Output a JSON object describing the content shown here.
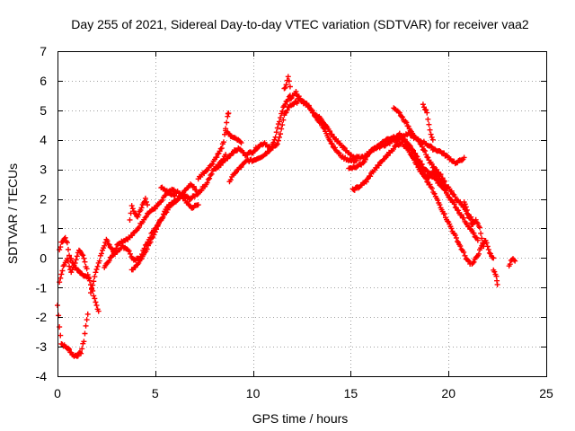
{
  "chart_data": {
    "type": "scatter",
    "title": "Day 255 of 2021, Sidereal Day-to-day VTEC variation (SDTVAR) for receiver vaa2",
    "xlabel": "GPS time / hours",
    "ylabel": "SDTVAR / TECUs",
    "xlim": [
      0,
      25
    ],
    "ylim": [
      -4,
      7
    ],
    "xticks": [
      0,
      5,
      10,
      15,
      20,
      25
    ],
    "yticks": [
      -4,
      -3,
      -2,
      -1,
      0,
      1,
      2,
      3,
      4,
      5,
      6,
      7
    ],
    "grid": true,
    "marker": "+",
    "series": [
      {
        "name": "SDTVAR",
        "color": "#ff0000",
        "tracks": [
          [
            [
              0,
              -1.6
            ],
            [
              0.1,
              -2.3
            ],
            [
              0.2,
              -2.9
            ],
            [
              0.4,
              -3.0
            ],
            [
              0.6,
              -3.1
            ],
            [
              0.8,
              -3.3
            ],
            [
              1.0,
              -3.3
            ],
            [
              1.2,
              -3.2
            ],
            [
              1.35,
              -2.8
            ],
            [
              1.45,
              -2.3
            ],
            [
              1.55,
              -1.9
            ]
          ],
          [
            [
              0.1,
              0.3
            ],
            [
              0.2,
              0.5
            ],
            [
              0.4,
              0.7
            ],
            [
              0.5,
              0.5
            ],
            [
              0.6,
              0.1
            ],
            [
              0.8,
              -0.2
            ],
            [
              1.0,
              -0.4
            ],
            [
              1.2,
              -0.5
            ],
            [
              1.4,
              -0.6
            ],
            [
              1.6,
              -0.7
            ]
          ],
          [
            [
              0.1,
              -0.8
            ],
            [
              0.3,
              -0.3
            ],
            [
              0.5,
              0.0
            ],
            [
              0.7,
              -0.5
            ],
            [
              0.9,
              -0.2
            ],
            [
              1.1,
              0.3
            ],
            [
              1.3,
              0.1
            ],
            [
              1.5,
              -0.4
            ],
            [
              1.7,
              -0.9
            ],
            [
              1.9,
              -1.4
            ],
            [
              2.1,
              -1.8
            ]
          ],
          [
            [
              1.7,
              -1.2
            ],
            [
              1.9,
              -0.6
            ],
            [
              2.1,
              -0.2
            ],
            [
              2.3,
              0.3
            ],
            [
              2.5,
              0.6
            ],
            [
              2.7,
              0.4
            ],
            [
              2.9,
              0.2
            ],
            [
              3.1,
              0.5
            ],
            [
              3.4,
              0.6
            ],
            [
              3.7,
              0.7
            ],
            [
              4.0,
              0.9
            ],
            [
              4.3,
              1.2
            ],
            [
              4.6,
              1.5
            ],
            [
              5.0,
              1.7
            ],
            [
              5.3,
              1.9
            ],
            [
              5.6,
              2.2
            ],
            [
              5.9,
              2.3
            ],
            [
              6.2,
              2.2
            ],
            [
              6.5,
              2.1
            ],
            [
              6.8,
              2.0
            ],
            [
              7.2,
              2.2
            ],
            [
              7.6,
              2.5
            ],
            [
              8.0,
              3.0
            ],
            [
              8.3,
              3.2
            ],
            [
              8.6,
              3.5
            ]
          ],
          [
            [
              2.4,
              -0.3
            ],
            [
              2.7,
              0.0
            ],
            [
              3.0,
              0.2
            ],
            [
              3.3,
              0.4
            ],
            [
              3.6,
              0.3
            ],
            [
              3.9,
              -0.1
            ],
            [
              4.2,
              0.0
            ],
            [
              4.5,
              0.4
            ],
            [
              4.8,
              0.8
            ],
            [
              5.1,
              1.1
            ],
            [
              5.4,
              1.4
            ],
            [
              5.7,
              1.7
            ],
            [
              6.0,
              1.9
            ],
            [
              6.3,
              2.1
            ],
            [
              6.6,
              1.9
            ],
            [
              6.9,
              1.7
            ],
            [
              7.2,
              1.8
            ]
          ],
          [
            [
              3.8,
              -0.4
            ],
            [
              4.1,
              -0.2
            ],
            [
              4.4,
              0.1
            ],
            [
              4.7,
              0.5
            ],
            [
              5.0,
              0.9
            ],
            [
              5.3,
              1.3
            ],
            [
              5.6,
              1.7
            ],
            [
              5.9,
              1.9
            ],
            [
              6.2,
              2.0
            ],
            [
              6.5,
              2.3
            ],
            [
              6.8,
              2.5
            ],
            [
              7.1,
              2.3
            ]
          ],
          [
            [
              3.7,
              1.3
            ],
            [
              3.8,
              1.8
            ],
            [
              3.9,
              1.6
            ],
            [
              4.1,
              1.4
            ],
            [
              4.3,
              1.7
            ],
            [
              4.5,
              2.0
            ],
            [
              4.6,
              1.8
            ]
          ],
          [
            [
              5.3,
              2.4
            ],
            [
              5.5,
              2.3
            ],
            [
              5.7,
              2.2
            ],
            [
              6.0,
              2.1
            ]
          ],
          [
            [
              7.2,
              2.7
            ],
            [
              7.5,
              2.9
            ],
            [
              7.8,
              3.1
            ],
            [
              8.1,
              3.4
            ],
            [
              8.3,
              3.6
            ],
            [
              8.5,
              3.9
            ],
            [
              8.6,
              4.4
            ],
            [
              8.7,
              4.8
            ],
            [
              8.75,
              4.9
            ]
          ],
          [
            [
              8.1,
              3.0
            ],
            [
              8.4,
              3.2
            ],
            [
              8.7,
              3.4
            ],
            [
              9.0,
              3.6
            ],
            [
              9.3,
              3.7
            ],
            [
              9.6,
              3.5
            ],
            [
              10.0,
              3.6
            ],
            [
              10.3,
              3.8
            ],
            [
              10.6,
              3.9
            ],
            [
              10.9,
              3.7
            ],
            [
              11.2,
              3.8
            ],
            [
              11.4,
              4.2
            ],
            [
              11.6,
              4.8
            ],
            [
              11.8,
              5.1
            ],
            [
              12.0,
              5.2
            ],
            [
              12.3,
              5.3
            ]
          ],
          [
            [
              8.8,
              2.6
            ],
            [
              9.1,
              2.9
            ],
            [
              9.4,
              3.1
            ],
            [
              9.7,
              3.3
            ],
            [
              10.0,
              3.3
            ],
            [
              10.3,
              3.4
            ],
            [
              10.6,
              3.5
            ],
            [
              10.9,
              3.7
            ],
            [
              11.1,
              4.0
            ],
            [
              11.3,
              4.5
            ],
            [
              11.5,
              5.0
            ],
            [
              11.7,
              5.3
            ],
            [
              11.9,
              5.5
            ]
          ],
          [
            [
              8.6,
              4.3
            ],
            [
              8.9,
              4.1
            ],
            [
              9.2,
              4.0
            ],
            [
              9.4,
              3.9
            ]
          ],
          [
            [
              11.6,
              5.7
            ],
            [
              11.8,
              6.1
            ],
            [
              11.9,
              5.8
            ]
          ],
          [
            [
              11.9,
              5.4
            ],
            [
              12.2,
              5.6
            ],
            [
              12.5,
              5.3
            ],
            [
              12.8,
              5.2
            ],
            [
              13.1,
              4.9
            ],
            [
              13.4,
              4.6
            ],
            [
              13.7,
              4.3
            ],
            [
              14.0,
              3.9
            ],
            [
              14.3,
              3.6
            ],
            [
              14.6,
              3.4
            ],
            [
              15.0,
              3.3
            ],
            [
              15.3,
              3.3
            ]
          ],
          [
            [
              12.3,
              5.4
            ],
            [
              12.7,
              5.2
            ],
            [
              13.1,
              4.9
            ],
            [
              13.5,
              4.7
            ],
            [
              13.8,
              4.4
            ],
            [
              14.1,
              4.1
            ],
            [
              14.4,
              3.9
            ],
            [
              14.8,
              3.6
            ],
            [
              15.2,
              3.4
            ],
            [
              15.6,
              3.4
            ],
            [
              16.0,
              3.6
            ],
            [
              16.4,
              3.8
            ],
            [
              16.8,
              4.0
            ],
            [
              17.2,
              4.1
            ],
            [
              17.6,
              4.1
            ],
            [
              18.0,
              4.2
            ],
            [
              18.4,
              4.0
            ],
            [
              18.8,
              3.9
            ],
            [
              19.2,
              3.7
            ],
            [
              19.6,
              3.6
            ],
            [
              20.0,
              3.4
            ],
            [
              20.4,
              3.2
            ],
            [
              20.8,
              3.4
            ]
          ],
          [
            [
              14.9,
              3.0
            ],
            [
              15.3,
              3.1
            ],
            [
              15.6,
              3.2
            ],
            [
              15.9,
              3.5
            ],
            [
              16.2,
              3.7
            ],
            [
              16.6,
              3.8
            ],
            [
              17.0,
              3.9
            ],
            [
              17.3,
              4.1
            ],
            [
              17.5,
              4.2
            ],
            [
              17.7,
              4.0
            ],
            [
              17.9,
              3.8
            ],
            [
              18.2,
              3.6
            ],
            [
              18.5,
              3.3
            ],
            [
              18.8,
              3.0
            ],
            [
              19.1,
              2.8
            ],
            [
              19.4,
              2.6
            ],
            [
              19.7,
              2.4
            ],
            [
              20.0,
              2.1
            ],
            [
              20.3,
              1.8
            ],
            [
              20.6,
              1.5
            ],
            [
              20.9,
              1.2
            ],
            [
              21.2,
              0.9
            ],
            [
              21.5,
              0.6
            ]
          ],
          [
            [
              15.1,
              2.3
            ],
            [
              15.4,
              2.4
            ],
            [
              15.8,
              2.6
            ],
            [
              16.1,
              2.9
            ],
            [
              16.5,
              3.2
            ],
            [
              16.9,
              3.5
            ],
            [
              17.3,
              3.8
            ],
            [
              17.6,
              3.9
            ],
            [
              17.9,
              3.7
            ],
            [
              18.2,
              3.4
            ],
            [
              18.5,
              3.0
            ],
            [
              18.8,
              2.7
            ],
            [
              19.1,
              2.4
            ],
            [
              19.4,
              2.0
            ],
            [
              19.7,
              1.6
            ],
            [
              20.0,
              1.2
            ],
            [
              20.3,
              0.8
            ],
            [
              20.6,
              0.4
            ],
            [
              20.9,
              0.0
            ],
            [
              21.1,
              -0.2
            ]
          ],
          [
            [
              17.3,
              3.9
            ],
            [
              17.6,
              4.1
            ],
            [
              17.9,
              3.9
            ],
            [
              18.2,
              3.6
            ],
            [
              18.4,
              3.3
            ],
            [
              18.6,
              3.0
            ],
            [
              18.8,
              2.8
            ],
            [
              19.0,
              2.7
            ],
            [
              19.2,
              2.9
            ],
            [
              19.5,
              2.7
            ],
            [
              19.8,
              2.5
            ],
            [
              20.1,
              2.3
            ],
            [
              20.4,
              2.0
            ],
            [
              20.7,
              1.8
            ],
            [
              21.0,
              1.5
            ],
            [
              21.3,
              1.2
            ]
          ],
          [
            [
              17.2,
              5.1
            ],
            [
              17.5,
              4.9
            ],
            [
              17.8,
              4.6
            ],
            [
              18.1,
              4.3
            ],
            [
              18.4,
              4.0
            ],
            [
              18.6,
              3.8
            ],
            [
              18.8,
              3.6
            ],
            [
              19.0,
              3.3
            ],
            [
              19.2,
              3.1
            ],
            [
              19.5,
              2.9
            ],
            [
              19.8,
              2.6
            ]
          ],
          [
            [
              18.7,
              5.2
            ],
            [
              18.9,
              4.9
            ],
            [
              19.0,
              4.5
            ],
            [
              19.1,
              4.2
            ],
            [
              19.2,
              4.0
            ]
          ],
          [
            [
              21.2,
              -0.2
            ],
            [
              21.5,
              0.1
            ],
            [
              21.7,
              0.4
            ],
            [
              21.9,
              0.6
            ],
            [
              22.1,
              0.2
            ],
            [
              22.3,
              0.0
            ]
          ],
          [
            [
              20.8,
              1.9
            ],
            [
              21.0,
              1.5
            ],
            [
              21.2,
              1.1
            ],
            [
              21.4,
              1.3
            ],
            [
              21.6,
              1.0
            ],
            [
              21.8,
              0.4
            ]
          ],
          [
            [
              22.3,
              -0.4
            ],
            [
              22.45,
              -0.6
            ],
            [
              22.5,
              -0.9
            ]
          ],
          [
            [
              23.1,
              -0.3
            ],
            [
              23.2,
              -0.1
            ],
            [
              23.3,
              0.0
            ],
            [
              23.4,
              -0.1
            ]
          ]
        ]
      }
    ]
  }
}
